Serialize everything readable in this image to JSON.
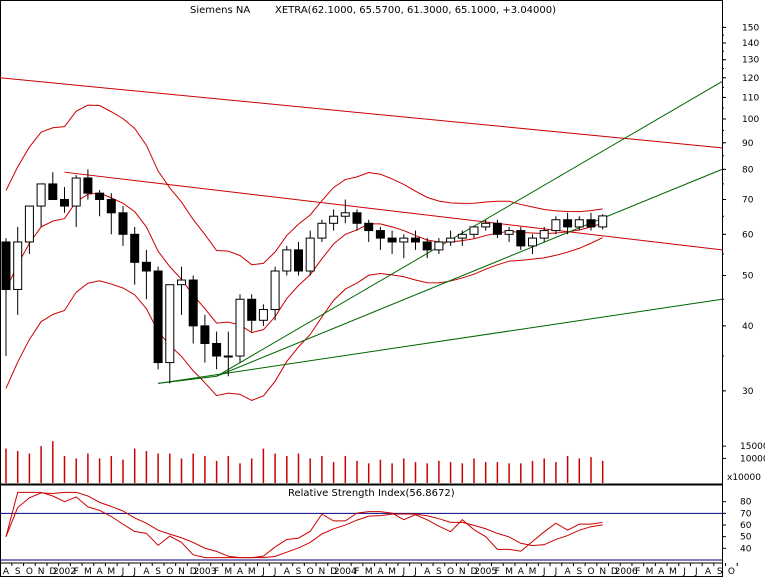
{
  "chart_data": [
    {
      "type": "candlestick",
      "title": "Siemens NA",
      "quote": "XETRA(62.1000, 65.5700, 61.3000, 65.1000, +3.04000)",
      "y_scale": "log",
      "ylim": [
        25,
        155
      ],
      "price_ticks": [
        "150",
        "140",
        "130",
        "120",
        "110",
        "100",
        "90",
        "80",
        "70",
        "60",
        "50",
        "40",
        "30"
      ],
      "x": [
        "2001-08",
        "2001-09",
        "2001-10",
        "2001-11",
        "2001-12",
        "2002-01",
        "2002-02",
        "2002-03",
        "2002-04",
        "2002-05",
        "2002-06",
        "2002-07",
        "2002-08",
        "2002-09",
        "2002-10",
        "2002-11",
        "2002-12",
        "2003-01",
        "2003-02",
        "2003-03",
        "2003-04",
        "2003-05",
        "2003-06",
        "2003-07",
        "2003-08",
        "2003-09",
        "2003-10",
        "2003-11",
        "2003-12",
        "2004-01",
        "2004-02",
        "2004-03",
        "2004-04",
        "2004-05",
        "2004-06",
        "2004-07",
        "2004-08",
        "2004-09",
        "2004-10",
        "2004-11",
        "2004-12",
        "2005-01",
        "2005-02",
        "2005-03",
        "2005-04",
        "2005-05",
        "2005-06",
        "2005-07",
        "2005-08",
        "2005-09",
        "2005-10",
        "2005-11"
      ],
      "ohlc": [
        [
          58,
          59,
          35,
          47
        ],
        [
          47,
          62,
          42,
          58
        ],
        [
          58,
          68,
          55,
          68
        ],
        [
          68,
          75,
          62,
          75
        ],
        [
          75,
          79,
          70,
          70
        ],
        [
          70,
          74,
          66,
          68
        ],
        [
          68,
          78,
          62,
          77
        ],
        [
          77,
          80,
          70,
          72
        ],
        [
          72,
          73,
          65,
          70
        ],
        [
          70,
          72,
          60,
          66
        ],
        [
          66,
          68,
          57,
          60
        ],
        [
          60,
          62,
          48,
          53
        ],
        [
          53,
          56,
          45,
          51
        ],
        [
          51,
          52,
          33,
          34
        ],
        [
          34,
          48,
          31,
          48
        ],
        [
          48,
          52,
          42,
          49
        ],
        [
          49,
          50,
          37,
          40
        ],
        [
          40,
          42,
          34,
          37
        ],
        [
          37,
          39,
          33,
          35
        ],
        [
          35,
          39,
          32,
          35
        ],
        [
          35,
          46,
          34,
          45
        ],
        [
          45,
          46,
          39,
          41
        ],
        [
          41,
          44,
          40,
          43
        ],
        [
          43,
          52,
          41,
          51
        ],
        [
          51,
          57,
          50,
          56
        ],
        [
          56,
          58,
          50,
          51
        ],
        [
          51,
          61,
          50,
          59
        ],
        [
          59,
          64,
          58,
          63
        ],
        [
          63,
          67,
          61,
          65
        ],
        [
          65,
          70,
          63,
          66
        ],
        [
          66,
          67,
          61,
          63
        ],
        [
          63,
          64,
          58,
          61
        ],
        [
          61,
          62,
          56,
          59
        ],
        [
          59,
          61,
          55,
          58
        ],
        [
          58,
          60,
          54,
          59
        ],
        [
          59,
          61,
          56,
          58
        ],
        [
          58,
          59,
          54,
          56
        ],
        [
          56,
          59,
          55,
          58
        ],
        [
          58,
          61,
          57,
          59
        ],
        [
          59,
          61,
          57,
          60
        ],
        [
          60,
          62,
          59,
          62
        ],
        [
          62,
          64,
          61,
          63
        ],
        [
          63,
          64,
          59,
          60
        ],
        [
          60,
          62,
          58,
          61
        ],
        [
          61,
          62,
          56,
          57
        ],
        [
          57,
          60,
          55,
          59
        ],
        [
          59,
          62,
          58,
          61
        ],
        [
          61,
          65,
          60,
          64
        ],
        [
          64,
          66,
          60,
          62
        ],
        [
          62,
          65,
          61,
          64
        ],
        [
          64,
          66,
          61,
          62
        ],
        [
          62,
          65.57,
          61.3,
          65.1
        ]
      ],
      "volume_ticks": [
        "15000",
        "10000"
      ],
      "volume_unit": "x10000",
      "volume": [
        14000,
        13000,
        12000,
        15000,
        17000,
        11000,
        10000,
        12000,
        10000,
        11000,
        9500,
        14000,
        13000,
        12000,
        12000,
        10000,
        12000,
        11000,
        9000,
        11000,
        8000,
        10000,
        14000,
        12000,
        11000,
        12000,
        10000,
        11000,
        8500,
        11000,
        9000,
        8000,
        9500,
        8000,
        10000,
        8500,
        8000,
        9000,
        8500,
        8000,
        10000,
        8500,
        8500,
        8000,
        8000,
        9000,
        10000,
        8500,
        11000,
        10000,
        10500,
        9000
      ],
      "x_axis_labels": [
        "A",
        "S",
        "O",
        "N",
        "D",
        "2002",
        "F",
        "M",
        "A",
        "M",
        "J",
        "J",
        "A",
        "S",
        "O",
        "N",
        "D",
        "2003",
        "F",
        "M",
        "A",
        "M",
        "J",
        "J",
        "A",
        "S",
        "O",
        "N",
        "D",
        "2004",
        "F",
        "M",
        "A",
        "M",
        "J",
        "J",
        "A",
        "S",
        "O",
        "N",
        "D",
        "2005",
        "F",
        "M",
        "A",
        "M",
        "J",
        "J",
        "A",
        "S",
        "O",
        "N",
        "D",
        "2006",
        "F",
        "M",
        "A",
        "M",
        "J",
        "J",
        "A",
        "S",
        "O"
      ],
      "colors": {
        "candle_up": "#ffffff",
        "candle_down": "#000000",
        "bands": "#cc0000",
        "fan_lines": "#006600",
        "volume": "#cc0000",
        "grid": "#d0d0d0"
      }
    },
    {
      "type": "line",
      "title": "Relative Strength Index(56.8672)",
      "ylim": [
        30,
        90
      ],
      "y_ticks": [
        "80",
        "70",
        "60",
        "50",
        "40"
      ],
      "reference_levels": [
        70,
        30
      ]
    }
  ]
}
